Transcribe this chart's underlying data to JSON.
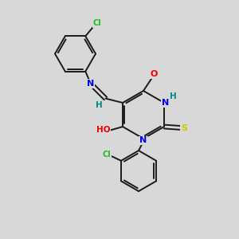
{
  "bg_color": "#d8d8d8",
  "bond_color": "#1a1a1a",
  "bond_width": 1.4,
  "atom_colors": {
    "Cl": "#22bb22",
    "N": "#0000ee",
    "O": "#ee0000",
    "S": "#cccc00",
    "H": "#008888",
    "C": "#1a1a1a"
  },
  "font_size": 7.5,
  "figsize": [
    3.0,
    3.0
  ],
  "dpi": 100
}
